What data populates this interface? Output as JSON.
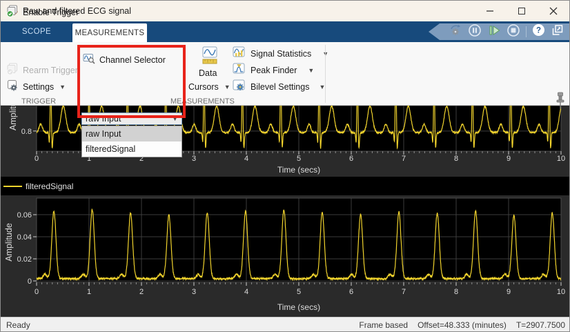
{
  "titlebar": {
    "title": "Raw and filtered ECG signal"
  },
  "tabs": {
    "scope": "SCOPE",
    "measurements": "MEASUREMENTS"
  },
  "trigger": {
    "enable": "Enable Trigger",
    "rearm": "Rearm Trigger",
    "settings": "Settings",
    "group_label": "TRIGGER"
  },
  "channel_selector": {
    "button_label": "Channel Selector",
    "value": "raw Input",
    "options": [
      "raw Input",
      "filteredSignal"
    ],
    "selected_option": "raw Input"
  },
  "measurements": {
    "group_label": "MEASUREMENTS",
    "data_word": "Data",
    "cursors_word": "Cursors",
    "signal_statistics": "Signal Statistics",
    "peak_finder": "Peak Finder",
    "bilevel_settings": "Bilevel Settings"
  },
  "legend": {
    "label": "filteredSignal"
  },
  "statusbar": {
    "ready": "Ready",
    "frame": "Frame based",
    "offset": "Offset=48.333 (minutes)",
    "time": "T=2907.7500"
  },
  "colors": {
    "accent_red": "#e8231a",
    "trace_yellow": "#f2d42d",
    "ribbon_blue": "#174a7c",
    "banner_blue": "#7e9cbd",
    "plot_bg": "#000000",
    "figure_bg": "#2a2a2a",
    "grid": "#3d3d3d",
    "tick_text": "#dcdcdc"
  },
  "chart_data": [
    {
      "id": "raw_plot",
      "type": "line",
      "signal": "raw Input",
      "title": "",
      "xlabel": "Time (secs)",
      "ylabel": "Amplitude",
      "xlim": [
        0,
        10
      ],
      "x_ticks": [
        0,
        1,
        2,
        3,
        4,
        5,
        6,
        7,
        8,
        9,
        10
      ],
      "ylim": [
        0.762,
        0.848
      ],
      "y_ticks": [
        0.8
      ],
      "y_tick_labels": [
        "0.8"
      ],
      "grid": true,
      "line_color": "#f2d42d",
      "waveform": {
        "baseline": 0.797,
        "beat_start": 0.27,
        "beat_period": 0.731,
        "beats": 14,
        "components": [
          {
            "name": "P",
            "amp": 0.016,
            "center": -0.19,
            "width": 0.045
          },
          {
            "name": "Q",
            "amp": -0.02,
            "center": -0.025,
            "width": 0.012
          },
          {
            "name": "R",
            "amp": 0.13,
            "center": 0.0,
            "width": 0.013
          },
          {
            "name": "S",
            "amp": -0.03,
            "center": 0.028,
            "width": 0.014
          },
          {
            "name": "T",
            "amp": 0.05,
            "center": 0.24,
            "width": 0.065
          }
        ],
        "noise": 0.0015,
        "dt": 0.004
      }
    },
    {
      "id": "filtered_plot",
      "type": "line",
      "signal": "filteredSignal",
      "title": "",
      "xlabel": "Time (secs)",
      "ylabel": "Amplitude",
      "xlim": [
        0,
        10
      ],
      "x_ticks": [
        0,
        1,
        2,
        3,
        4,
        5,
        6,
        7,
        8,
        9,
        10
      ],
      "ylim": [
        -0.00125,
        0.075
      ],
      "y_ticks": [
        0,
        0.02,
        0.04,
        0.06
      ],
      "y_tick_labels": [
        "0",
        "0.02",
        "0.04",
        "0.06"
      ],
      "grid": true,
      "line_color": "#f2d42d",
      "waveform": {
        "baseline": 0.002,
        "peak_times": [
          0.33,
          1.061,
          1.792,
          2.523,
          3.254,
          3.985,
          4.716,
          5.447,
          6.178,
          6.909,
          7.64,
          8.371,
          9.102,
          9.833
        ],
        "peak_heights": [
          0.0615,
          0.0625,
          0.0595,
          0.0575,
          0.0595,
          0.0615,
          0.0625,
          0.06,
          0.0585,
          0.0605,
          0.0595,
          0.0615,
          0.0575,
          0.0595
        ],
        "peak_width": 0.055,
        "shoulder": {
          "amp": 0.004,
          "offset": -0.17,
          "width": 0.05
        },
        "noise": 0.0009,
        "dt": 0.004
      }
    }
  ]
}
